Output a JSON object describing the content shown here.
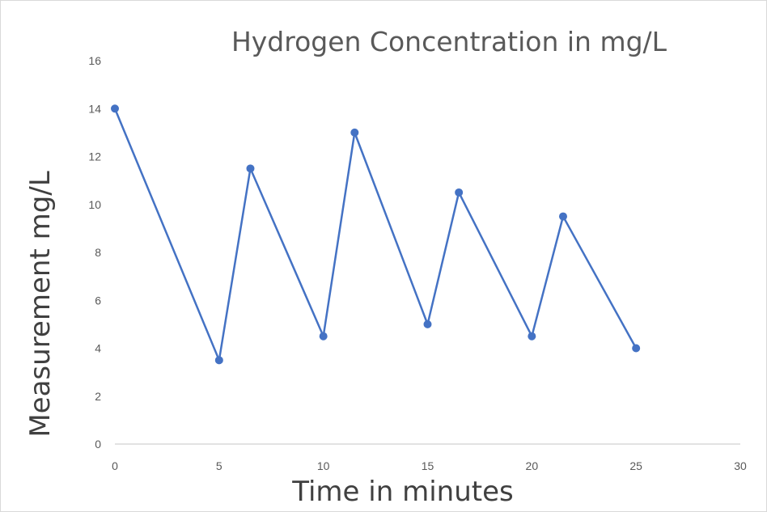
{
  "chart_data": {
    "type": "scatter",
    "title": "Hydrogen Concentration in mg/L",
    "xlabel": "Time in minutes",
    "ylabel": "Measurement mg/L",
    "xlim": [
      0,
      30
    ],
    "ylim": [
      0,
      16
    ],
    "x_ticks": [
      0,
      5,
      10,
      15,
      20,
      25,
      30
    ],
    "y_ticks": [
      0,
      2,
      4,
      6,
      8,
      10,
      12,
      14,
      16
    ],
    "grid": false,
    "legend": "none",
    "lines": true,
    "markers": true,
    "color": "#4472c4",
    "series": [
      {
        "x": [
          0,
          5,
          6.5,
          10,
          11.5,
          15,
          16.5,
          20,
          21.5,
          25
        ],
        "y": [
          14,
          3.5,
          11.5,
          4.5,
          13,
          5,
          10.5,
          4.5,
          9.5,
          4
        ]
      }
    ]
  }
}
